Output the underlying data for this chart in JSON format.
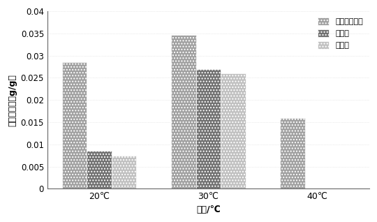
{
  "categories": [
    "20℃",
    "30℃",
    "40℃"
  ],
  "series_names": [
    "对羟基苯甲醉",
    "香草醉",
    "丁香醉"
  ],
  "values": [
    [
      0.0285,
      0.0347,
      0.016
    ],
    [
      0.0085,
      0.027,
      0.0
    ],
    [
      0.0075,
      0.026,
      0.0
    ]
  ],
  "bar_colors": [
    "#a0a0a0",
    "#707070",
    "#c0c0c0"
  ],
  "hatch_patterns": [
    "....",
    "....",
    "...."
  ],
  "ylabel": "最大吸附量（g/g）",
  "xlabel": "温度/℃",
  "ylim": [
    0,
    0.04
  ],
  "yticks": [
    0,
    0.005,
    0.01,
    0.015,
    0.02,
    0.025,
    0.03,
    0.035,
    0.04
  ],
  "bar_width": 0.25,
  "figsize": [
    5.4,
    3.18
  ],
  "dpi": 100,
  "bg_color": "#ffffff",
  "grid_color": "#d0d0d0"
}
